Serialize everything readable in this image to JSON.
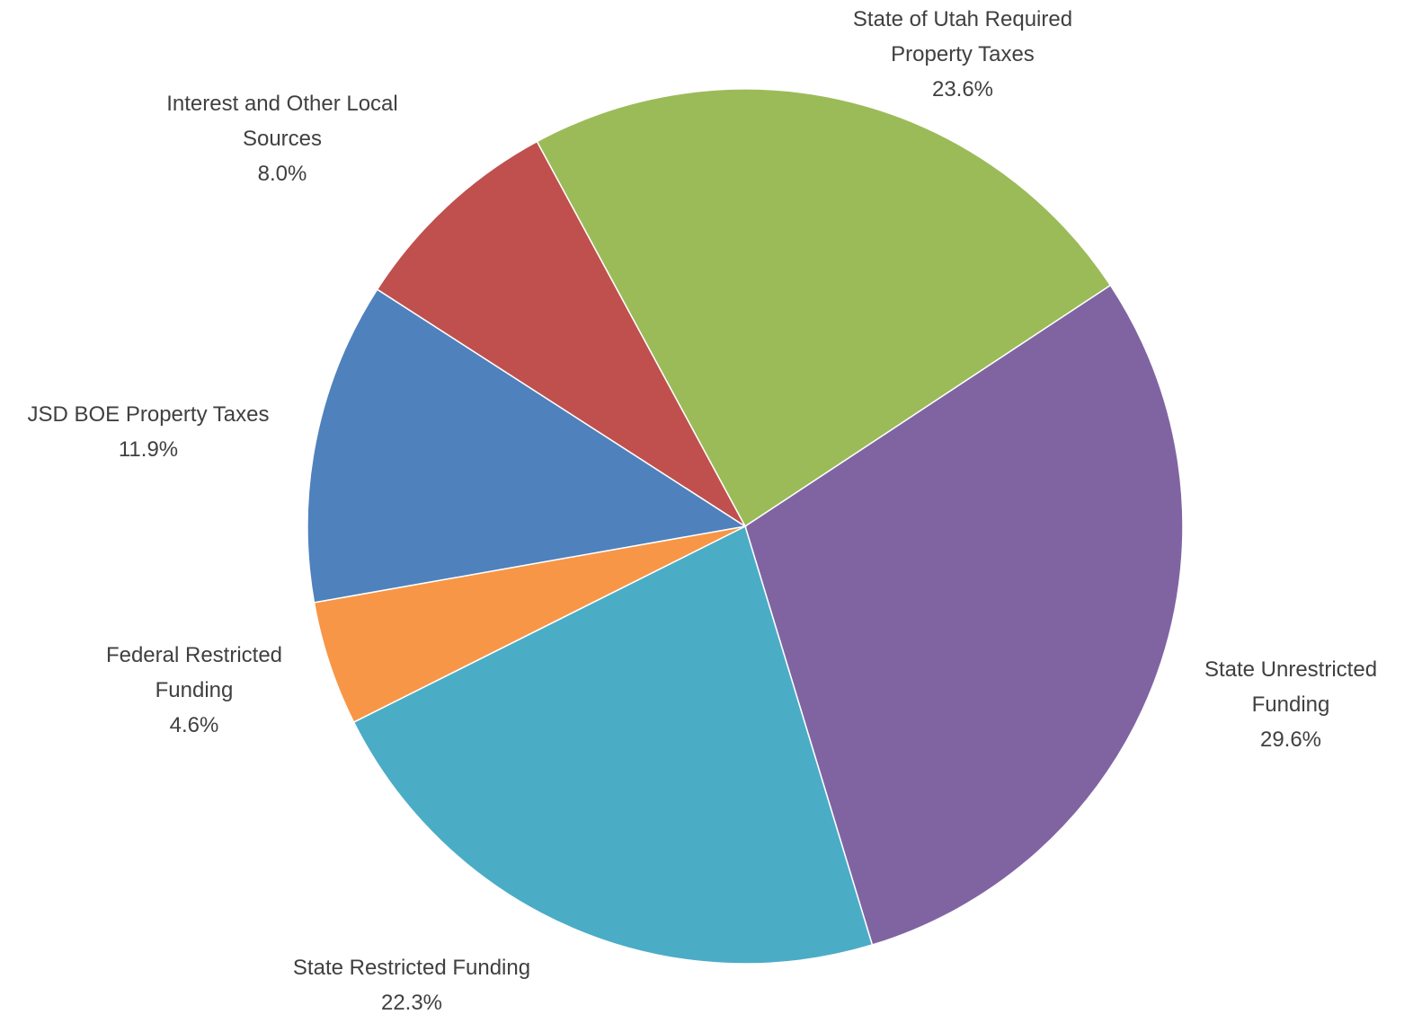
{
  "chart_data": {
    "type": "pie",
    "categories": [
      "State of Utah Required Property Taxes",
      "State Unrestricted Funding",
      "State Restricted Funding",
      "Federal Restricted Funding",
      "JSD BOE Property Taxes",
      "Interest and Other Local Sources"
    ],
    "values": [
      23.6,
      29.6,
      22.3,
      4.6,
      11.9,
      8.0
    ],
    "value_labels": [
      "23.6%",
      "29.6%",
      "22.3%",
      "4.6%",
      "11.9%",
      "8.0%"
    ],
    "colors": [
      "#9bbb59",
      "#8064a2",
      "#4bacc6",
      "#f79646",
      "#4f81bd",
      "#c0504d"
    ]
  }
}
